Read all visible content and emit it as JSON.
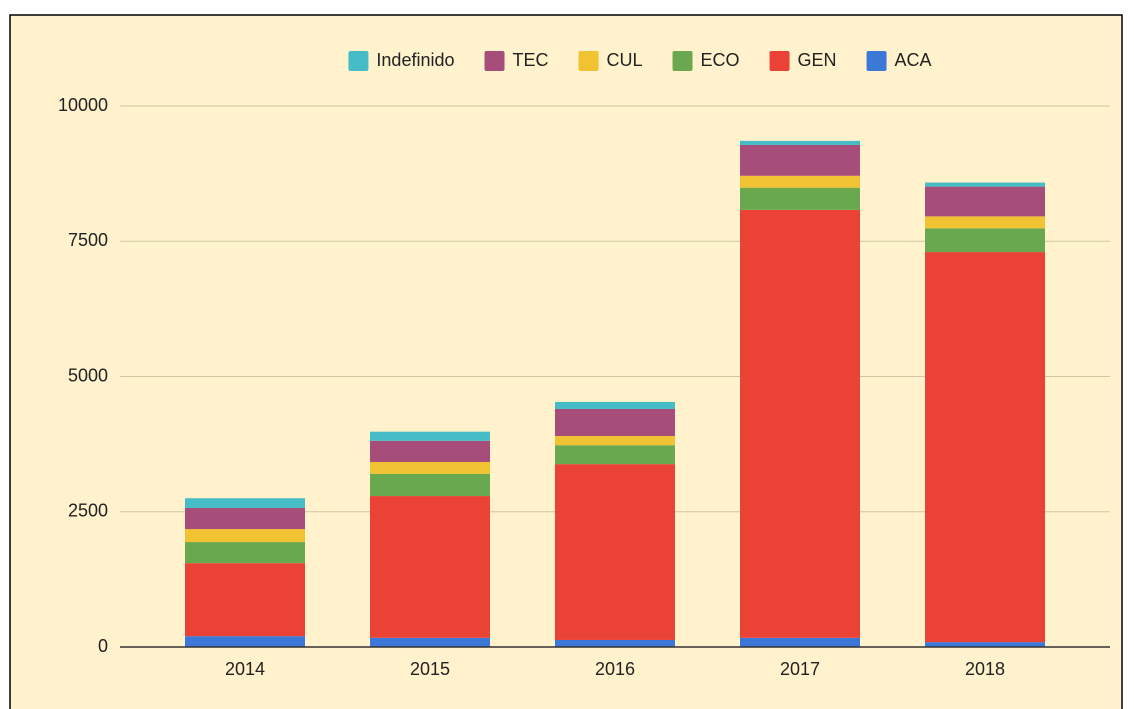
{
  "chart_data": {
    "type": "stacked_bar",
    "categories": [
      "2014",
      "2015",
      "2016",
      "2017",
      "2018"
    ],
    "series": [
      {
        "name": "ACA",
        "color": "#3c78d8",
        "values": [
          200,
          170,
          130,
          170,
          90
        ]
      },
      {
        "name": "GEN",
        "color": "#ea4335",
        "values": [
          1350,
          2620,
          3250,
          7910,
          7210
        ]
      },
      {
        "name": "ECO",
        "color": "#6aa84f",
        "values": [
          390,
          410,
          350,
          410,
          440
        ]
      },
      {
        "name": "CUL",
        "color": "#f1c232",
        "values": [
          240,
          220,
          170,
          220,
          220
        ]
      },
      {
        "name": "TEC",
        "color": "#a64d79",
        "values": [
          390,
          390,
          500,
          570,
          550
        ]
      },
      {
        "name": "Indefinido",
        "color": "#46bdc6",
        "values": [
          180,
          170,
          130,
          75,
          75
        ]
      }
    ],
    "ylim": [
      0,
      10000
    ],
    "yticks": [
      0,
      2500,
      5000,
      7500,
      10000
    ],
    "grid": true,
    "legend": "top"
  }
}
